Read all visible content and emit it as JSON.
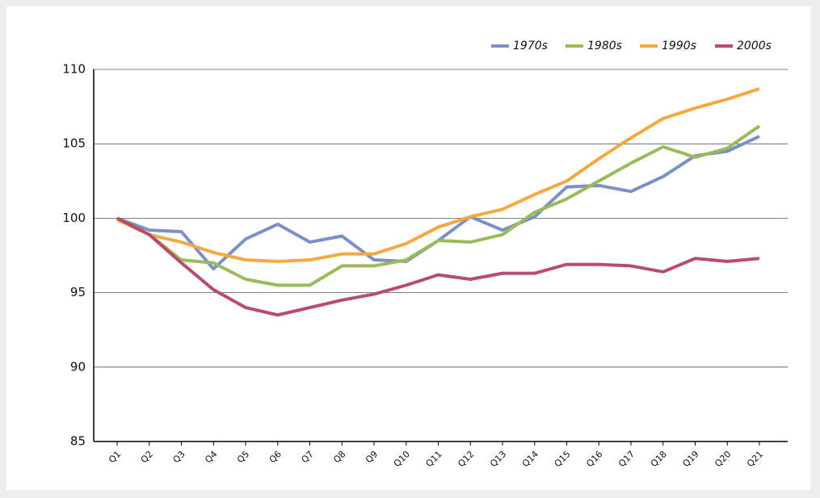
{
  "chart_data": {
    "type": "line",
    "categories": [
      "Q1",
      "Q2",
      "Q3",
      "Q4",
      "Q5",
      "Q6",
      "Q7",
      "Q8",
      "Q9",
      "Q10",
      "Q11",
      "Q12",
      "Q13",
      "Q14",
      "Q15",
      "Q16",
      "Q17",
      "Q18",
      "Q19",
      "Q20",
      "Q21"
    ],
    "series": [
      {
        "name": "1970s",
        "color": "#7b8fc8",
        "values": [
          100,
          99.2,
          99.1,
          96.6,
          98.6,
          99.6,
          98.4,
          98.8,
          97.2,
          97.1,
          98.5,
          100.1,
          99.2,
          100.1,
          102.1,
          102.2,
          101.8,
          102.8,
          104.2,
          104.5,
          105.5
        ]
      },
      {
        "name": "1980s",
        "color": "#9bbb59",
        "values": [
          100,
          98.9,
          97.2,
          97.0,
          95.9,
          95.5,
          95.5,
          96.8,
          96.8,
          97.2,
          98.5,
          98.4,
          98.9,
          100.4,
          101.3,
          102.5,
          103.7,
          104.8,
          104.1,
          104.7,
          106.2
        ]
      },
      {
        "name": "1990s",
        "color": "#f4a940",
        "values": [
          99.9,
          98.9,
          98.4,
          97.7,
          97.2,
          97.1,
          97.2,
          97.6,
          97.6,
          98.3,
          99.4,
          100.1,
          100.6,
          101.6,
          102.5,
          104.0,
          105.4,
          106.7,
          107.4,
          108.0,
          108.7
        ]
      },
      {
        "name": "2000s",
        "color": "#b94c6a",
        "values": [
          100,
          98.9,
          97.0,
          95.2,
          94.0,
          93.5,
          94.0,
          94.5,
          94.9,
          95.5,
          96.2,
          95.9,
          96.3,
          96.3,
          96.9,
          96.9,
          96.8,
          96.4,
          97.3,
          97.1,
          97.3
        ]
      }
    ],
    "ylim": [
      85,
      110
    ],
    "yticks": [
      85,
      90,
      95,
      100,
      105,
      110
    ],
    "grid": true,
    "legend": "top-right"
  }
}
